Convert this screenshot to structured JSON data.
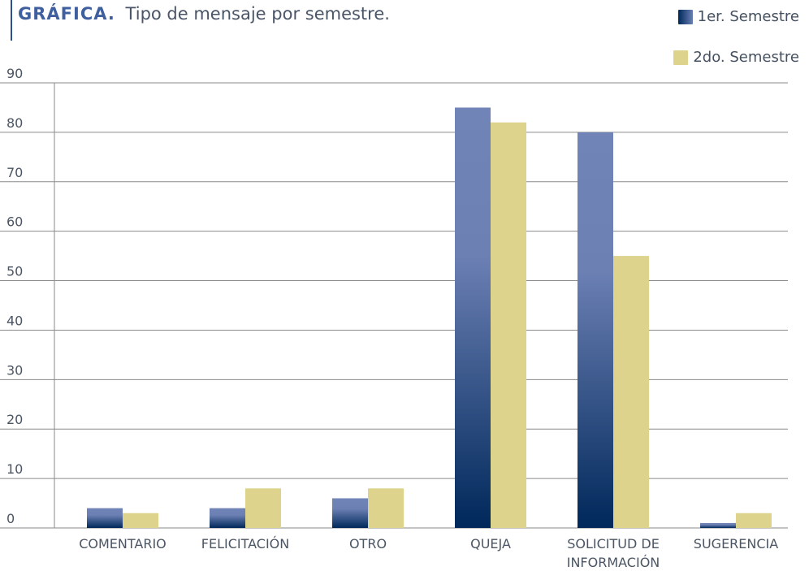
{
  "header": {
    "title_strong": "GRÁFICA.",
    "title_sub": "Tipo de mensaje por semestre."
  },
  "legend": {
    "items": [
      {
        "label": "1er. Semestre",
        "color": "#6a80b5"
      },
      {
        "label": "2do. Semestre",
        "color": "#ddd38c"
      }
    ]
  },
  "chart_data": {
    "type": "bar",
    "categories": [
      [
        "COMENTARIO"
      ],
      [
        "FELICITACIÓN"
      ],
      [
        "OTRO"
      ],
      [
        "QUEJA"
      ],
      [
        "SOLICITUD DE",
        "INFORMACIÓN"
      ],
      [
        "SUGERENCIA"
      ]
    ],
    "series": [
      {
        "name": "1er. Semestre",
        "values": [
          4,
          4,
          6,
          85,
          80,
          1
        ]
      },
      {
        "name": "2do. Semestre",
        "values": [
          3,
          8,
          8,
          82,
          55,
          3
        ]
      }
    ],
    "ylim": [
      0,
      90
    ],
    "yticks": [
      0,
      10,
      20,
      30,
      40,
      50,
      60,
      70,
      80,
      90
    ],
    "grid": true,
    "colors": {
      "series1_top": "#7084b7",
      "series1_bottom": "#00285a",
      "series2": "#ddd38c",
      "grid": "#8a8a8a",
      "text": "#4b5563"
    }
  }
}
